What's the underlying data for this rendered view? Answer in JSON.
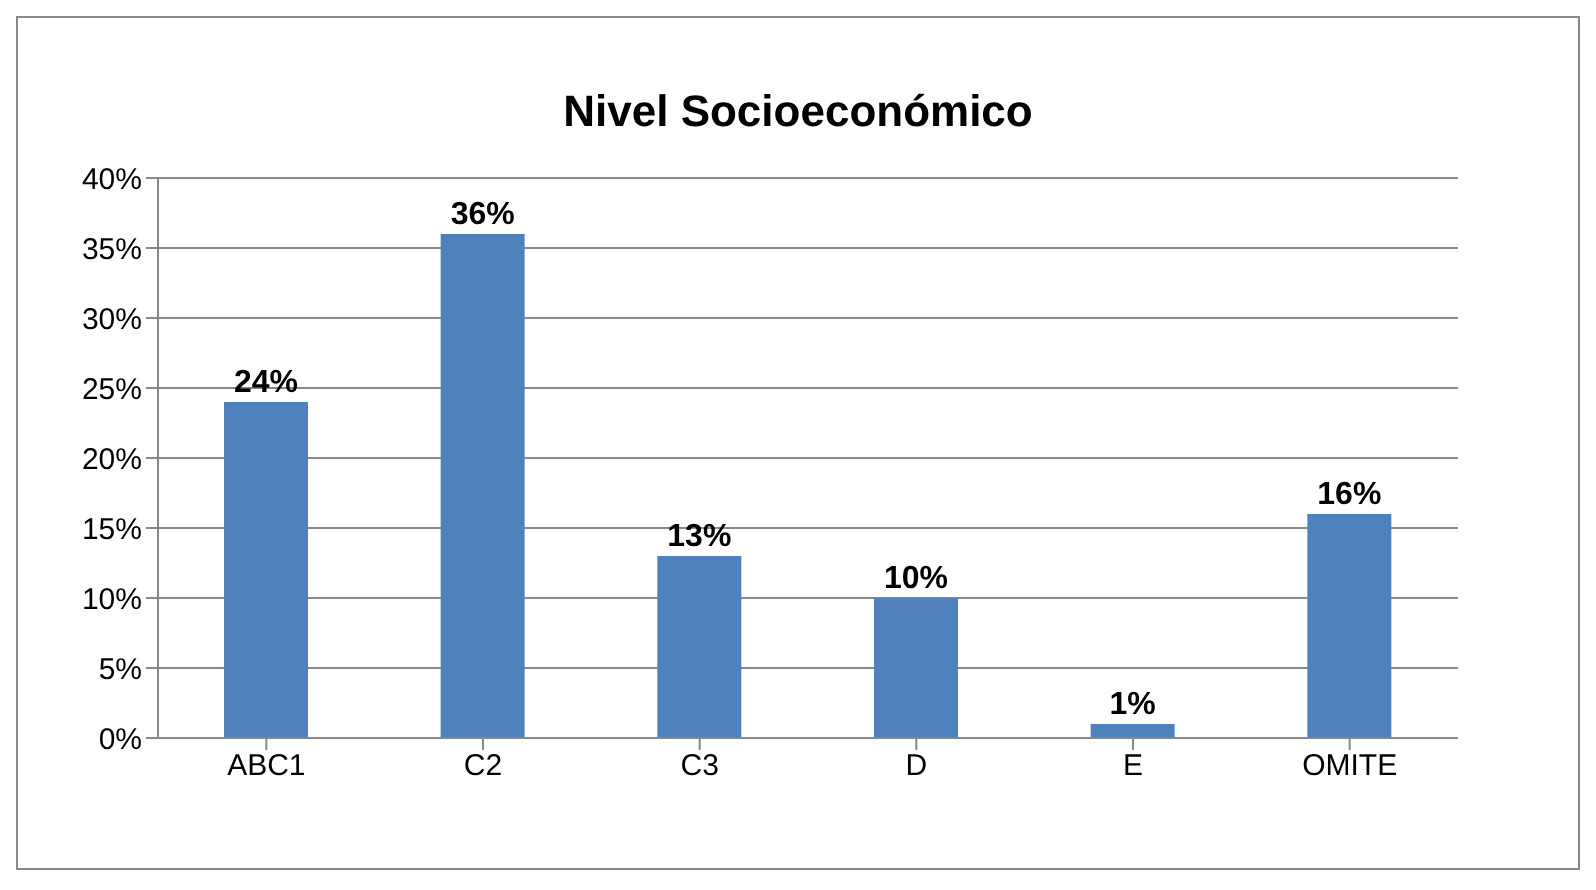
{
  "chart_data": {
    "type": "bar",
    "title": "Nivel Socioeconómico",
    "categories": [
      "ABC1",
      "C2",
      "C3",
      "D",
      "E",
      "OMITE"
    ],
    "values": [
      24,
      36,
      13,
      10,
      1,
      16
    ],
    "value_labels": [
      "24%",
      "36%",
      "13%",
      "10%",
      "1%",
      "16%"
    ],
    "color": "#4f81bd",
    "ylim": [
      0,
      40
    ],
    "yticks": [
      {
        "value": 0,
        "label": "0%"
      },
      {
        "value": 5,
        "label": "5%"
      },
      {
        "value": 10,
        "label": "10%"
      },
      {
        "value": 15,
        "label": "15%"
      },
      {
        "value": 20,
        "label": "20%"
      },
      {
        "value": 25,
        "label": "25%"
      },
      {
        "value": 30,
        "label": "30%"
      },
      {
        "value": 35,
        "label": "35%"
      },
      {
        "value": 40,
        "label": "40%"
      }
    ],
    "grid": "y"
  }
}
